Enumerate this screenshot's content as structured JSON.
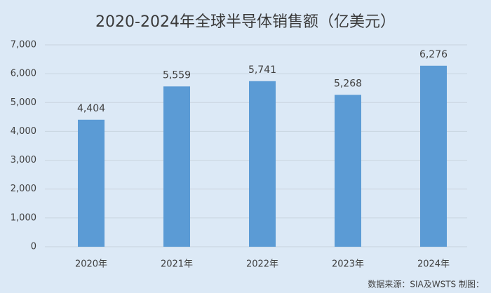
{
  "chart_data": {
    "type": "bar",
    "title": "2020-2024年全球半导体销售额（亿美元）",
    "categories": [
      "2020年",
      "2021年",
      "2022年",
      "2023年",
      "2024年"
    ],
    "values": [
      4404,
      5559,
      5741,
      5268,
      6276
    ],
    "value_labels": [
      "4,404",
      "5,559",
      "5,741",
      "5,268",
      "6,276"
    ],
    "color": "#5b9bd5",
    "ylim": [
      0,
      7000
    ],
    "yticks": [
      0,
      {
        "value": 1000,
        "label": "1,000"
      },
      {
        "value": 2000,
        "label": "2,000"
      },
      {
        "value": 3000,
        "label": "3,000"
      },
      {
        "value": 4000,
        "label": "4,000"
      },
      {
        "value": 5000,
        "label": "5,000"
      },
      {
        "value": 6000,
        "label": "6,000"
      },
      {
        "value": 7000,
        "label": "7,000"
      }
    ],
    "grid": true,
    "source": "数据来源：SIA及WSTS  制图："
  }
}
